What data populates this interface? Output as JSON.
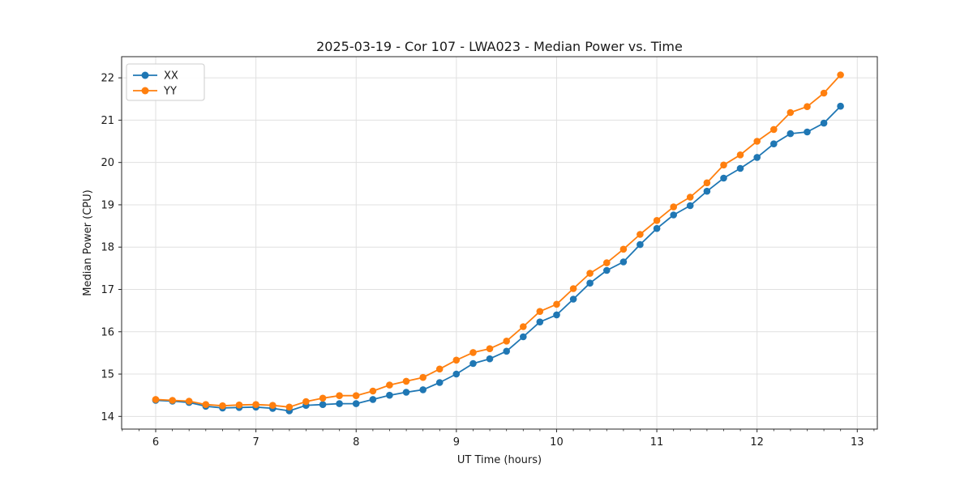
{
  "page": {
    "background": "#ffffff"
  },
  "chart_data": {
    "type": "line",
    "title": "2025-03-19 - Cor 107 - LWA023 - Median Power vs. Time",
    "xlabel": "UT Time (hours)",
    "ylabel": "Median Power (CPU)",
    "xlim": [
      5.66,
      13.2
    ],
    "ylim": [
      13.7,
      22.5
    ],
    "xticks": [
      6,
      7,
      8,
      9,
      10,
      11,
      12,
      13
    ],
    "yticks": [
      14,
      15,
      16,
      17,
      18,
      19,
      20,
      21,
      22
    ],
    "x_minor_step": 0.16667,
    "grid": true,
    "grid_color": "#e0e0e0",
    "spine_color": "#262626",
    "legend_position": "upper left",
    "legend_entries": [
      "XX",
      "YY"
    ],
    "x": [
      6.0,
      6.167,
      6.333,
      6.5,
      6.667,
      6.833,
      7.0,
      7.167,
      7.333,
      7.5,
      7.667,
      7.833,
      8.0,
      8.167,
      8.333,
      8.5,
      8.667,
      8.833,
      9.0,
      9.167,
      9.333,
      9.5,
      9.667,
      9.833,
      10.0,
      10.167,
      10.333,
      10.5,
      10.667,
      10.833,
      11.0,
      11.167,
      11.333,
      11.5,
      11.667,
      11.833,
      12.0,
      12.167,
      12.333,
      12.5,
      12.667,
      12.833
    ],
    "series": [
      {
        "name": "XX",
        "color": "#1f77b4",
        "values": [
          14.38,
          14.36,
          14.33,
          14.24,
          14.2,
          14.21,
          14.22,
          14.19,
          14.13,
          14.26,
          14.28,
          14.3,
          14.3,
          14.4,
          14.5,
          14.57,
          14.63,
          14.8,
          15.0,
          15.25,
          15.36,
          15.54,
          15.88,
          16.23,
          16.4,
          16.77,
          17.15,
          17.45,
          17.65,
          18.06,
          18.44,
          18.76,
          18.98,
          19.32,
          19.63,
          19.86,
          20.12,
          20.44,
          20.68,
          20.72,
          20.93,
          21.33
        ]
      },
      {
        "name": "YY",
        "color": "#ff7f0e",
        "values": [
          14.4,
          14.38,
          14.36,
          14.28,
          14.25,
          14.27,
          14.28,
          14.26,
          14.22,
          14.35,
          14.43,
          14.49,
          14.49,
          14.6,
          14.74,
          14.83,
          14.92,
          15.12,
          15.33,
          15.51,
          15.6,
          15.78,
          16.12,
          16.48,
          16.65,
          17.02,
          17.38,
          17.63,
          17.95,
          18.3,
          18.63,
          18.95,
          19.18,
          19.52,
          19.94,
          20.18,
          20.5,
          20.78,
          21.18,
          21.32,
          21.64,
          22.07
        ]
      }
    ]
  }
}
